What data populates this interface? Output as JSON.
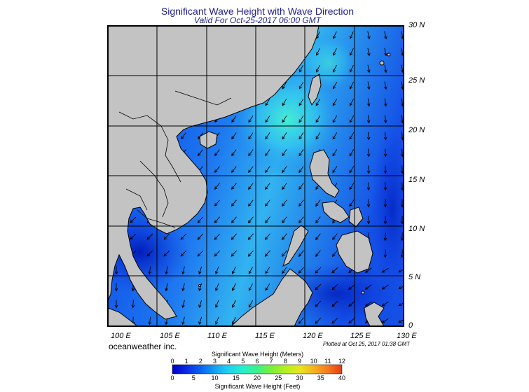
{
  "header": {
    "title": "Significant Wave Height with Wave Direction",
    "subtitle": "Valid For Oct-25-2017 06:00 GMT"
  },
  "axes": {
    "latitudes": [
      "30 N",
      "25 N",
      "20 N",
      "15 N",
      "10 N",
      "5 N",
      "0"
    ],
    "longitudes": [
      "100 E",
      "105 E",
      "110 E",
      "115 E",
      "120 E",
      "125 E",
      "130 E"
    ]
  },
  "footer": {
    "credit": "oceanweather inc.",
    "plotted": "Plotted at Oct 25, 2017 01:38 GMT"
  },
  "legend": {
    "meters_title": "Significant Wave Height (Meters)",
    "feet_title": "Significant Wave Height (Feet)",
    "meters_ticks": [
      "0",
      "1",
      "2",
      "3",
      "4",
      "5",
      "6",
      "7",
      "8",
      "9",
      "10",
      "11",
      "12"
    ],
    "feet_ticks": [
      "0",
      "5",
      "10",
      "15",
      "20",
      "25",
      "30",
      "35",
      "40"
    ],
    "colors": [
      "#0000c8",
      "#0a28e6",
      "#0a64f0",
      "#14a0f5",
      "#1ed2f0",
      "#28f0c8",
      "#3cf08c",
      "#78f03c",
      "#b4f01e",
      "#e6e61e",
      "#f5b41e",
      "#f5781e",
      "#e63c14"
    ]
  },
  "colors": {
    "land": "#c3c3c3",
    "water_deep": "#0a32dc",
    "water_mid": "#1e6ef0",
    "water_light": "#3cd2f0",
    "arrow": "#000000"
  }
}
